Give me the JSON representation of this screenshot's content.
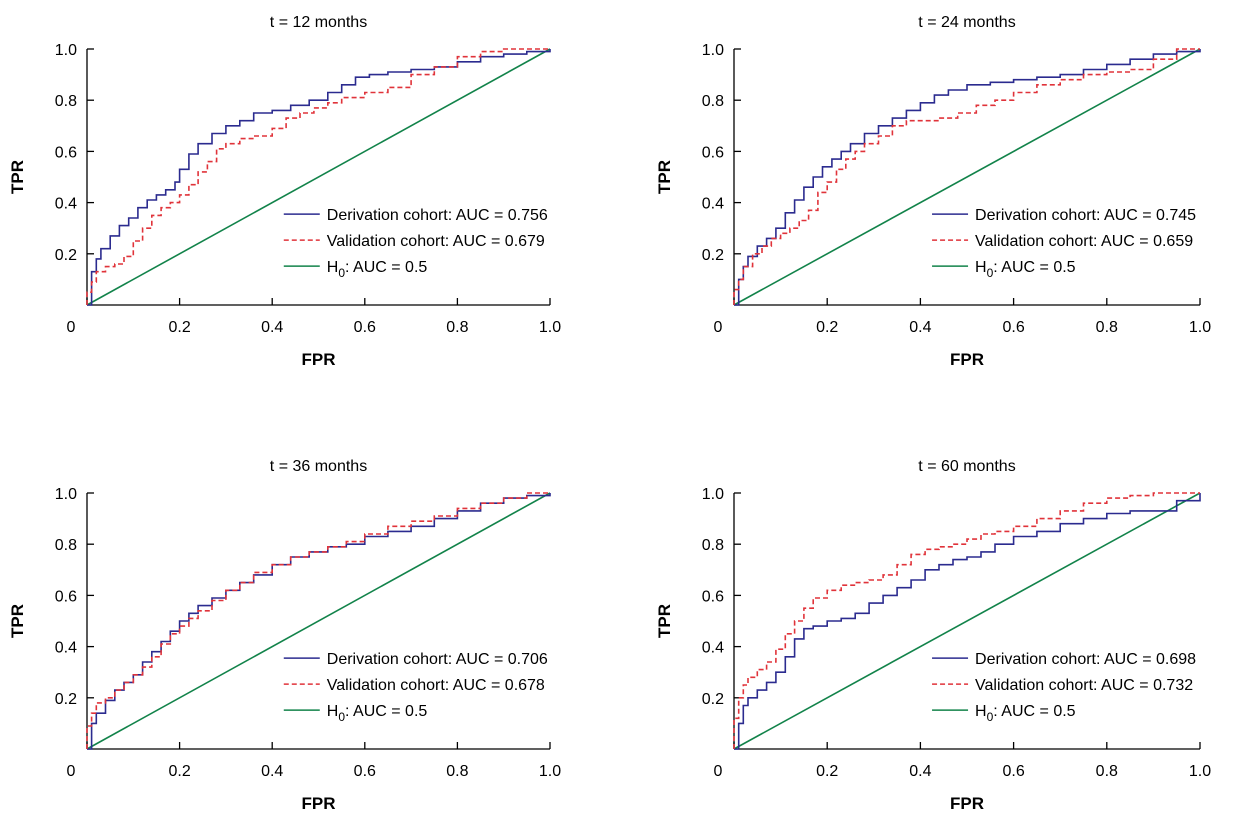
{
  "colors": {
    "derivation": "#2b2b8f",
    "validation": "#e0333a",
    "h0": "#12834a"
  },
  "chart_data": [
    {
      "type": "line",
      "title": "t = 12 months",
      "xlabel": "FPR",
      "ylabel": "TPR",
      "xlim": [
        0,
        1
      ],
      "ylim": [
        0,
        1
      ],
      "x_ticks": [
        "0",
        "0.2",
        "0.4",
        "0.6",
        "0.8",
        "1.0"
      ],
      "y_ticks": [
        "0.2",
        "0.4",
        "0.6",
        "0.8",
        "1.0"
      ],
      "legend_position": "bottom-right",
      "series": [
        {
          "label": "Derivation cohort: AUC = 0.756",
          "style": "solid",
          "color_key": "derivation",
          "x": [
            0,
            0.01,
            0.02,
            0.03,
            0.05,
            0.07,
            0.09,
            0.11,
            0.13,
            0.15,
            0.17,
            0.19,
            0.2,
            0.22,
            0.24,
            0.27,
            0.3,
            0.33,
            0.36,
            0.4,
            0.44,
            0.48,
            0.52,
            0.55,
            0.58,
            0.61,
            0.65,
            0.7,
            0.75,
            0.8,
            0.85,
            0.9,
            0.95,
            1.0
          ],
          "y": [
            0,
            0.13,
            0.18,
            0.22,
            0.27,
            0.31,
            0.34,
            0.38,
            0.41,
            0.43,
            0.45,
            0.48,
            0.53,
            0.59,
            0.63,
            0.67,
            0.7,
            0.72,
            0.75,
            0.76,
            0.78,
            0.8,
            0.83,
            0.86,
            0.89,
            0.9,
            0.91,
            0.92,
            0.93,
            0.95,
            0.97,
            0.98,
            0.99,
            1.0
          ]
        },
        {
          "label": "Validation cohort: AUC = 0.679",
          "style": "dashed",
          "color_key": "validation",
          "x": [
            0,
            0.01,
            0.02,
            0.04,
            0.06,
            0.08,
            0.1,
            0.12,
            0.14,
            0.16,
            0.18,
            0.2,
            0.22,
            0.24,
            0.26,
            0.28,
            0.3,
            0.33,
            0.36,
            0.4,
            0.43,
            0.46,
            0.49,
            0.52,
            0.55,
            0.6,
            0.65,
            0.7,
            0.75,
            0.8,
            0.85,
            0.9,
            0.95,
            1.0
          ],
          "y": [
            0,
            0.05,
            0.09,
            0.13,
            0.15,
            0.16,
            0.19,
            0.25,
            0.3,
            0.35,
            0.38,
            0.4,
            0.43,
            0.47,
            0.52,
            0.56,
            0.61,
            0.63,
            0.65,
            0.66,
            0.69,
            0.73,
            0.75,
            0.77,
            0.79,
            0.81,
            0.83,
            0.85,
            0.9,
            0.93,
            0.97,
            0.99,
            1.0,
            1.0
          ]
        },
        {
          "label": "H0: AUC = 0.5",
          "label_main": "H",
          "label_sub": "0",
          "label_rest": ": AUC = 0.5",
          "style": "solid",
          "color_key": "h0",
          "x": [
            0,
            1
          ],
          "y": [
            0,
            1
          ]
        }
      ]
    },
    {
      "type": "line",
      "title": "t = 24 months",
      "xlabel": "FPR",
      "ylabel": "TPR",
      "xlim": [
        0,
        1
      ],
      "ylim": [
        0,
        1
      ],
      "x_ticks": [
        "0",
        "0.2",
        "0.4",
        "0.6",
        "0.8",
        "1.0"
      ],
      "y_ticks": [
        "0.2",
        "0.4",
        "0.6",
        "0.8",
        "1.0"
      ],
      "legend_position": "bottom-right",
      "series": [
        {
          "label": "Derivation cohort: AUC = 0.745",
          "style": "solid",
          "color_key": "derivation",
          "x": [
            0,
            0.01,
            0.02,
            0.03,
            0.05,
            0.07,
            0.09,
            0.11,
            0.13,
            0.15,
            0.17,
            0.19,
            0.21,
            0.23,
            0.25,
            0.28,
            0.31,
            0.34,
            0.37,
            0.4,
            0.43,
            0.46,
            0.5,
            0.55,
            0.6,
            0.65,
            0.7,
            0.75,
            0.8,
            0.85,
            0.9,
            0.95,
            1.0
          ],
          "y": [
            0,
            0.1,
            0.15,
            0.19,
            0.23,
            0.26,
            0.3,
            0.36,
            0.41,
            0.46,
            0.5,
            0.54,
            0.57,
            0.6,
            0.63,
            0.67,
            0.7,
            0.73,
            0.76,
            0.79,
            0.82,
            0.84,
            0.86,
            0.87,
            0.88,
            0.89,
            0.9,
            0.92,
            0.94,
            0.96,
            0.98,
            0.99,
            1.0
          ]
        },
        {
          "label": "Validation cohort: AUC = 0.659",
          "style": "dashed",
          "color_key": "validation",
          "x": [
            0,
            0.01,
            0.02,
            0.04,
            0.06,
            0.08,
            0.1,
            0.12,
            0.14,
            0.16,
            0.18,
            0.2,
            0.22,
            0.24,
            0.26,
            0.28,
            0.31,
            0.34,
            0.37,
            0.4,
            0.44,
            0.48,
            0.52,
            0.56,
            0.6,
            0.65,
            0.7,
            0.75,
            0.8,
            0.85,
            0.9,
            0.95,
            1.0
          ],
          "y": [
            0,
            0.06,
            0.1,
            0.15,
            0.2,
            0.23,
            0.26,
            0.28,
            0.3,
            0.33,
            0.37,
            0.44,
            0.48,
            0.53,
            0.57,
            0.6,
            0.63,
            0.66,
            0.7,
            0.72,
            0.72,
            0.73,
            0.75,
            0.78,
            0.8,
            0.83,
            0.86,
            0.88,
            0.9,
            0.91,
            0.92,
            0.96,
            1.0
          ]
        },
        {
          "label": "H0: AUC = 0.5",
          "label_main": "H",
          "label_sub": "0",
          "label_rest": ": AUC = 0.5",
          "style": "solid",
          "color_key": "h0",
          "x": [
            0,
            1
          ],
          "y": [
            0,
            1
          ]
        }
      ]
    },
    {
      "type": "line",
      "title": "t = 36 months",
      "xlabel": "FPR",
      "ylabel": "TPR",
      "xlim": [
        0,
        1
      ],
      "ylim": [
        0,
        1
      ],
      "x_ticks": [
        "0",
        "0.2",
        "0.4",
        "0.6",
        "0.8",
        "1.0"
      ],
      "y_ticks": [
        "0.2",
        "0.4",
        "0.6",
        "0.8",
        "1.0"
      ],
      "legend_position": "bottom-right",
      "series": [
        {
          "label": "Derivation cohort: AUC = 0.706",
          "style": "solid",
          "color_key": "derivation",
          "x": [
            0,
            0.01,
            0.02,
            0.04,
            0.06,
            0.08,
            0.1,
            0.12,
            0.14,
            0.16,
            0.18,
            0.2,
            0.22,
            0.24,
            0.27,
            0.3,
            0.33,
            0.36,
            0.4,
            0.44,
            0.48,
            0.52,
            0.56,
            0.6,
            0.65,
            0.7,
            0.75,
            0.8,
            0.85,
            0.9,
            0.95,
            1.0
          ],
          "y": [
            0,
            0.1,
            0.14,
            0.19,
            0.23,
            0.26,
            0.29,
            0.34,
            0.38,
            0.42,
            0.46,
            0.5,
            0.53,
            0.56,
            0.59,
            0.62,
            0.65,
            0.68,
            0.72,
            0.75,
            0.77,
            0.79,
            0.8,
            0.83,
            0.85,
            0.87,
            0.9,
            0.93,
            0.96,
            0.98,
            0.99,
            1.0
          ]
        },
        {
          "label": "Validation cohort: AUC = 0.678",
          "style": "dashed",
          "color_key": "validation",
          "x": [
            0,
            0.01,
            0.02,
            0.04,
            0.06,
            0.08,
            0.1,
            0.12,
            0.14,
            0.16,
            0.18,
            0.2,
            0.22,
            0.24,
            0.27,
            0.3,
            0.33,
            0.36,
            0.4,
            0.44,
            0.48,
            0.52,
            0.56,
            0.6,
            0.65,
            0.7,
            0.75,
            0.8,
            0.85,
            0.9,
            0.95,
            1.0
          ],
          "y": [
            0,
            0.09,
            0.14,
            0.18,
            0.2,
            0.23,
            0.26,
            0.29,
            0.32,
            0.36,
            0.41,
            0.45,
            0.48,
            0.51,
            0.54,
            0.58,
            0.62,
            0.65,
            0.69,
            0.72,
            0.75,
            0.77,
            0.79,
            0.81,
            0.84,
            0.87,
            0.89,
            0.91,
            0.94,
            0.96,
            0.98,
            1.0
          ]
        },
        {
          "label": "H0: AUC = 0.5",
          "label_main": "H",
          "label_sub": "0",
          "label_rest": ": AUC = 0.5",
          "style": "solid",
          "color_key": "h0",
          "x": [
            0,
            1
          ],
          "y": [
            0,
            1
          ]
        }
      ]
    },
    {
      "type": "line",
      "title": "t = 60 months",
      "xlabel": "FPR",
      "ylabel": "TPR",
      "xlim": [
        0,
        1
      ],
      "ylim": [
        0,
        1
      ],
      "x_ticks": [
        "0",
        "0.2",
        "0.4",
        "0.6",
        "0.8",
        "1.0"
      ],
      "y_ticks": [
        "0.2",
        "0.4",
        "0.6",
        "0.8",
        "1.0"
      ],
      "legend_position": "bottom-right",
      "series": [
        {
          "label": "Derivation cohort: AUC = 0.698",
          "style": "solid",
          "color_key": "derivation",
          "x": [
            0,
            0.01,
            0.02,
            0.03,
            0.05,
            0.07,
            0.09,
            0.11,
            0.13,
            0.15,
            0.17,
            0.2,
            0.23,
            0.26,
            0.29,
            0.32,
            0.35,
            0.38,
            0.41,
            0.44,
            0.47,
            0.5,
            0.53,
            0.56,
            0.6,
            0.65,
            0.7,
            0.75,
            0.8,
            0.85,
            0.9,
            0.95,
            1.0
          ],
          "y": [
            0,
            0.1,
            0.17,
            0.2,
            0.23,
            0.26,
            0.3,
            0.36,
            0.43,
            0.47,
            0.48,
            0.5,
            0.51,
            0.53,
            0.57,
            0.6,
            0.63,
            0.66,
            0.7,
            0.72,
            0.74,
            0.75,
            0.77,
            0.8,
            0.83,
            0.85,
            0.88,
            0.9,
            0.92,
            0.93,
            0.93,
            0.97,
            1.0
          ]
        },
        {
          "label": "Validation cohort: AUC = 0.732",
          "style": "dashed",
          "color_key": "validation",
          "x": [
            0,
            0.01,
            0.02,
            0.03,
            0.05,
            0.07,
            0.09,
            0.11,
            0.13,
            0.15,
            0.17,
            0.2,
            0.23,
            0.26,
            0.29,
            0.32,
            0.35,
            0.38,
            0.41,
            0.44,
            0.47,
            0.5,
            0.53,
            0.56,
            0.6,
            0.65,
            0.7,
            0.75,
            0.8,
            0.85,
            0.9,
            0.95,
            1.0
          ],
          "y": [
            0,
            0.12,
            0.2,
            0.25,
            0.28,
            0.31,
            0.34,
            0.39,
            0.45,
            0.5,
            0.55,
            0.59,
            0.62,
            0.64,
            0.65,
            0.66,
            0.68,
            0.72,
            0.76,
            0.78,
            0.79,
            0.8,
            0.82,
            0.84,
            0.85,
            0.87,
            0.9,
            0.93,
            0.96,
            0.98,
            0.99,
            1.0,
            1.0
          ]
        },
        {
          "label": "H0: AUC = 0.5",
          "label_main": "H",
          "label_sub": "0",
          "label_rest": ": AUC = 0.5",
          "style": "solid",
          "color_key": "h0",
          "x": [
            0,
            1
          ],
          "y": [
            0,
            1
          ]
        }
      ]
    }
  ]
}
